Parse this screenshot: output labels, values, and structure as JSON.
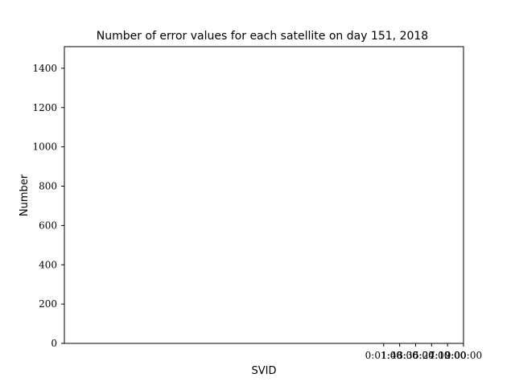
{
  "chart_data": {
    "type": "bar",
    "title": "Number of error values for each satellite on day 151, 2018",
    "xlabel": "SVID",
    "ylabel": "Number",
    "ylim": [
      0,
      1510
    ],
    "yticks": [
      0,
      200,
      400,
      600,
      800,
      1000,
      1200,
      1400
    ],
    "xlim": [
      0,
      100
    ],
    "xtick_positions": [
      80,
      84,
      88,
      92,
      96,
      100
    ],
    "xtick_labels": [
      "0:01:00",
      "1:48:00",
      "3:36:00",
      "5:24:00",
      "7:12:00",
      "9:00:00"
    ],
    "categories": [],
    "values": [],
    "grid": false,
    "legend": "none"
  }
}
